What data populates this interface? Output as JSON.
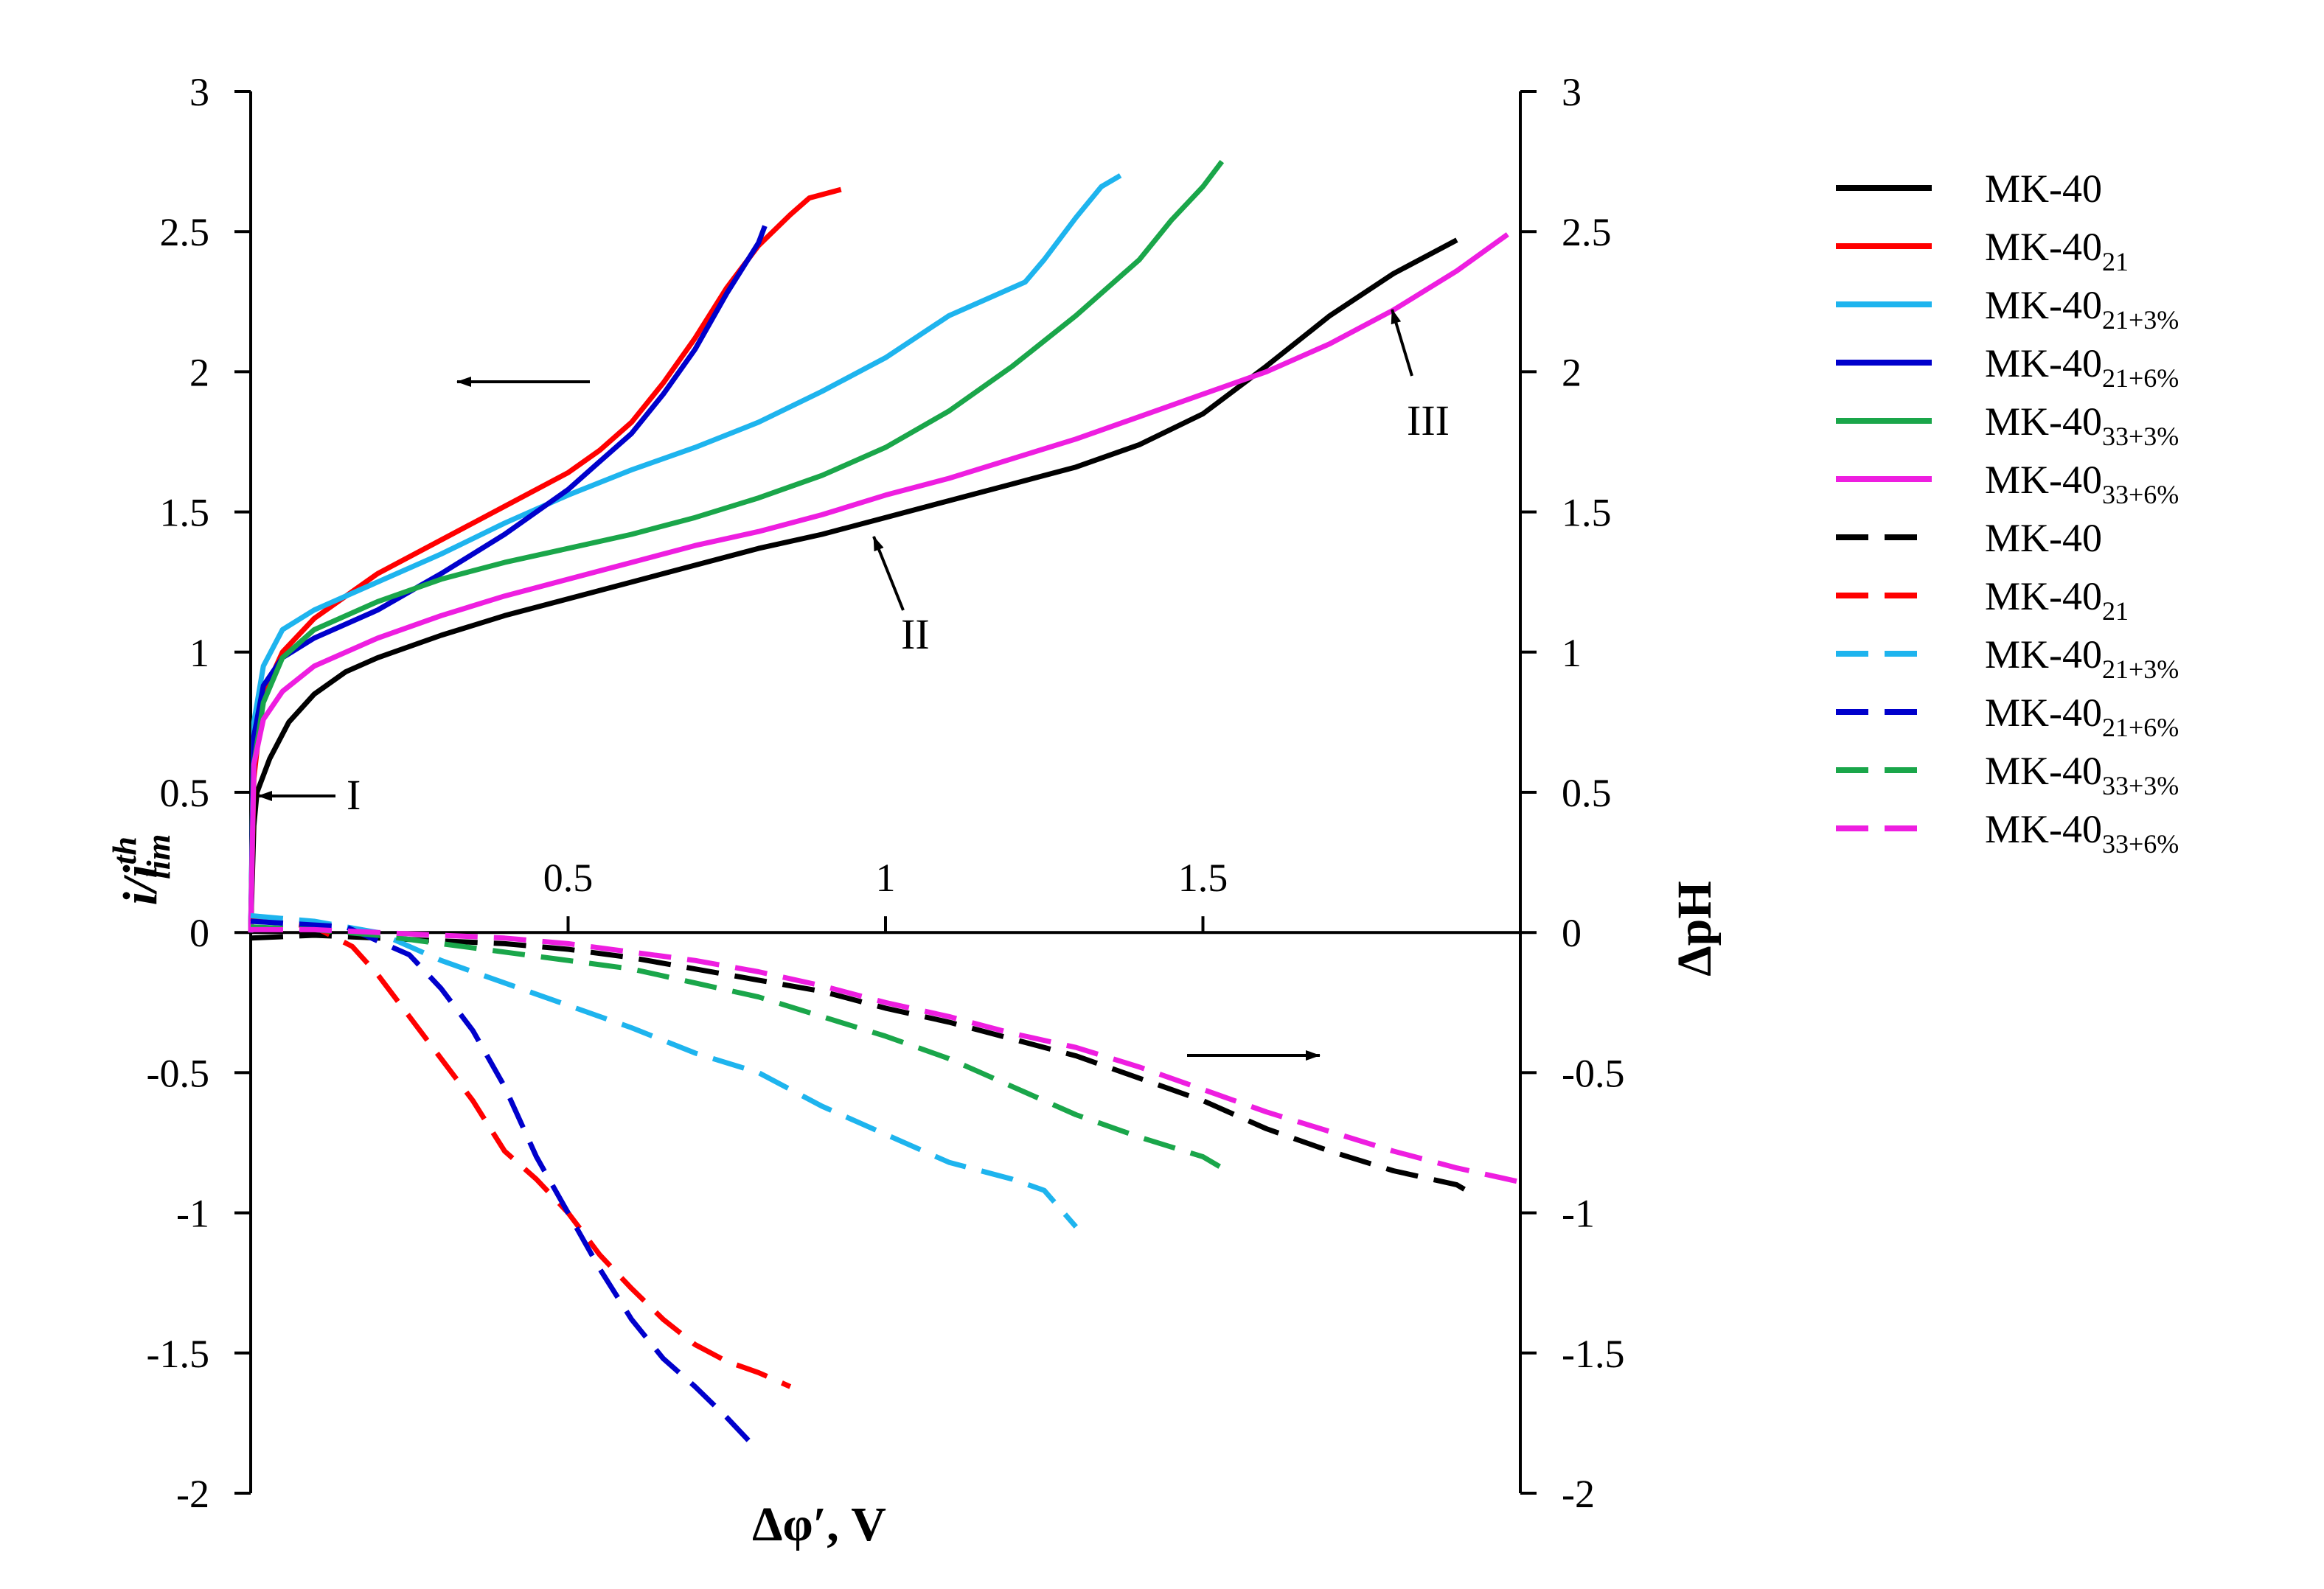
{
  "chart_data": {
    "type": "line",
    "xlabel": "Δφ′, V",
    "ylabel_left": "i/i_lim^th",
    "ylabel_right": "ΔpH",
    "xlim": [
      0,
      2.0
    ],
    "ylim": [
      -2,
      3
    ],
    "x_ticks": [
      "0.5",
      "1",
      "1.5"
    ],
    "y_ticks": [
      "3",
      "2.5",
      "2",
      "1.5",
      "1",
      "0.5",
      "0",
      "-0.5",
      "-1",
      "-1.5",
      "-2"
    ],
    "annotations": [
      "I",
      "II",
      "III"
    ],
    "series": [
      {
        "name": "MK-40",
        "sub": "",
        "color": "#000000",
        "dash": "solid",
        "axis": "left",
        "points": [
          [
            0,
            0
          ],
          [
            0.005,
            0.38
          ],
          [
            0.01,
            0.5
          ],
          [
            0.03,
            0.62
          ],
          [
            0.06,
            0.75
          ],
          [
            0.1,
            0.85
          ],
          [
            0.15,
            0.93
          ],
          [
            0.2,
            0.98
          ],
          [
            0.3,
            1.06
          ],
          [
            0.4,
            1.13
          ],
          [
            0.5,
            1.19
          ],
          [
            0.6,
            1.25
          ],
          [
            0.7,
            1.31
          ],
          [
            0.8,
            1.37
          ],
          [
            0.9,
            1.42
          ],
          [
            1.0,
            1.48
          ],
          [
            1.1,
            1.54
          ],
          [
            1.2,
            1.6
          ],
          [
            1.3,
            1.66
          ],
          [
            1.4,
            1.74
          ],
          [
            1.5,
            1.85
          ],
          [
            1.6,
            2.02
          ],
          [
            1.7,
            2.2
          ],
          [
            1.8,
            2.35
          ],
          [
            1.9,
            2.47
          ]
        ]
      },
      {
        "name": "MK-40",
        "sub": "21",
        "color": "#ff0000",
        "dash": "solid",
        "axis": "left",
        "points": [
          [
            0,
            0
          ],
          [
            0.005,
            0.55
          ],
          [
            0.02,
            0.85
          ],
          [
            0.05,
            1.0
          ],
          [
            0.1,
            1.12
          ],
          [
            0.2,
            1.28
          ],
          [
            0.3,
            1.4
          ],
          [
            0.4,
            1.52
          ],
          [
            0.5,
            1.64
          ],
          [
            0.55,
            1.72
          ],
          [
            0.6,
            1.82
          ],
          [
            0.65,
            1.96
          ],
          [
            0.7,
            2.12
          ],
          [
            0.75,
            2.3
          ],
          [
            0.8,
            2.45
          ],
          [
            0.85,
            2.56
          ],
          [
            0.88,
            2.62
          ],
          [
            0.93,
            2.65
          ]
        ]
      },
      {
        "name": "MK-40",
        "sub": "21+3%",
        "color": "#1eb4ee",
        "dash": "solid",
        "axis": "left",
        "points": [
          [
            0,
            0
          ],
          [
            0.005,
            0.75
          ],
          [
            0.02,
            0.95
          ],
          [
            0.05,
            1.08
          ],
          [
            0.1,
            1.15
          ],
          [
            0.2,
            1.25
          ],
          [
            0.3,
            1.35
          ],
          [
            0.4,
            1.46
          ],
          [
            0.5,
            1.56
          ],
          [
            0.6,
            1.65
          ],
          [
            0.7,
            1.73
          ],
          [
            0.8,
            1.82
          ],
          [
            0.9,
            1.93
          ],
          [
            1.0,
            2.05
          ],
          [
            1.1,
            2.2
          ],
          [
            1.15,
            2.25
          ],
          [
            1.22,
            2.32
          ],
          [
            1.25,
            2.4
          ],
          [
            1.3,
            2.55
          ],
          [
            1.34,
            2.66
          ],
          [
            1.37,
            2.7
          ]
        ]
      },
      {
        "name": "MK-40",
        "sub": "21+6%",
        "color": "#0000cc",
        "dash": "solid",
        "axis": "left",
        "points": [
          [
            0,
            0
          ],
          [
            0.005,
            0.7
          ],
          [
            0.02,
            0.88
          ],
          [
            0.05,
            0.98
          ],
          [
            0.1,
            1.05
          ],
          [
            0.2,
            1.15
          ],
          [
            0.3,
            1.28
          ],
          [
            0.4,
            1.42
          ],
          [
            0.5,
            1.58
          ],
          [
            0.55,
            1.68
          ],
          [
            0.6,
            1.78
          ],
          [
            0.65,
            1.92
          ],
          [
            0.7,
            2.08
          ],
          [
            0.75,
            2.28
          ],
          [
            0.8,
            2.46
          ],
          [
            0.81,
            2.52
          ]
        ]
      },
      {
        "name": "MK-40",
        "sub": "33+3%",
        "color": "#1aa64a",
        "dash": "solid",
        "axis": "left",
        "points": [
          [
            0,
            0
          ],
          [
            0.005,
            0.6
          ],
          [
            0.02,
            0.82
          ],
          [
            0.05,
            0.98
          ],
          [
            0.1,
            1.08
          ],
          [
            0.2,
            1.18
          ],
          [
            0.3,
            1.26
          ],
          [
            0.4,
            1.32
          ],
          [
            0.5,
            1.37
          ],
          [
            0.6,
            1.42
          ],
          [
            0.7,
            1.48
          ],
          [
            0.8,
            1.55
          ],
          [
            0.9,
            1.63
          ],
          [
            1.0,
            1.73
          ],
          [
            1.1,
            1.86
          ],
          [
            1.2,
            2.02
          ],
          [
            1.3,
            2.2
          ],
          [
            1.4,
            2.4
          ],
          [
            1.45,
            2.54
          ],
          [
            1.5,
            2.66
          ],
          [
            1.53,
            2.75
          ]
        ]
      },
      {
        "name": "MK-40",
        "sub": "33+6%",
        "color": "#ee1ee0",
        "dash": "solid",
        "axis": "left",
        "points": [
          [
            0,
            0
          ],
          [
            0.005,
            0.6
          ],
          [
            0.02,
            0.76
          ],
          [
            0.05,
            0.86
          ],
          [
            0.1,
            0.95
          ],
          [
            0.2,
            1.05
          ],
          [
            0.3,
            1.13
          ],
          [
            0.4,
            1.2
          ],
          [
            0.5,
            1.26
          ],
          [
            0.6,
            1.32
          ],
          [
            0.7,
            1.38
          ],
          [
            0.8,
            1.43
          ],
          [
            0.9,
            1.49
          ],
          [
            1.0,
            1.56
          ],
          [
            1.1,
            1.62
          ],
          [
            1.2,
            1.69
          ],
          [
            1.3,
            1.76
          ],
          [
            1.4,
            1.84
          ],
          [
            1.5,
            1.92
          ],
          [
            1.6,
            2.0
          ],
          [
            1.7,
            2.1
          ],
          [
            1.8,
            2.22
          ],
          [
            1.9,
            2.36
          ],
          [
            1.98,
            2.49
          ]
        ]
      },
      {
        "name": "MK-40",
        "sub": "",
        "color": "#000000",
        "dash": "dashed",
        "axis": "right",
        "points": [
          [
            0,
            -0.02
          ],
          [
            0.1,
            -0.01
          ],
          [
            0.2,
            -0.02
          ],
          [
            0.3,
            -0.03
          ],
          [
            0.4,
            -0.04
          ],
          [
            0.5,
            -0.06
          ],
          [
            0.6,
            -0.09
          ],
          [
            0.7,
            -0.13
          ],
          [
            0.8,
            -0.17
          ],
          [
            0.9,
            -0.21
          ],
          [
            1.0,
            -0.27
          ],
          [
            1.1,
            -0.32
          ],
          [
            1.2,
            -0.38
          ],
          [
            1.3,
            -0.44
          ],
          [
            1.4,
            -0.52
          ],
          [
            1.5,
            -0.6
          ],
          [
            1.6,
            -0.7
          ],
          [
            1.7,
            -0.78
          ],
          [
            1.8,
            -0.85
          ],
          [
            1.9,
            -0.9
          ],
          [
            1.93,
            -0.94
          ]
        ]
      },
      {
        "name": "MK-40",
        "sub": "21",
        "color": "#ff0000",
        "dash": "dashed",
        "axis": "right",
        "points": [
          [
            0,
            0.05
          ],
          [
            0.1,
            0.02
          ],
          [
            0.16,
            -0.05
          ],
          [
            0.2,
            -0.15
          ],
          [
            0.25,
            -0.3
          ],
          [
            0.3,
            -0.45
          ],
          [
            0.35,
            -0.6
          ],
          [
            0.4,
            -0.78
          ],
          [
            0.45,
            -0.88
          ],
          [
            0.5,
            -1.0
          ],
          [
            0.55,
            -1.15
          ],
          [
            0.6,
            -1.27
          ],
          [
            0.65,
            -1.38
          ],
          [
            0.7,
            -1.47
          ],
          [
            0.75,
            -1.53
          ],
          [
            0.8,
            -1.57
          ],
          [
            0.85,
            -1.62
          ]
        ]
      },
      {
        "name": "MK-40",
        "sub": "21+3%",
        "color": "#1eb4ee",
        "dash": "dashed",
        "axis": "right",
        "points": [
          [
            0,
            0.06
          ],
          [
            0.1,
            0.04
          ],
          [
            0.2,
            0.0
          ],
          [
            0.3,
            -0.1
          ],
          [
            0.4,
            -0.18
          ],
          [
            0.5,
            -0.26
          ],
          [
            0.6,
            -0.34
          ],
          [
            0.7,
            -0.43
          ],
          [
            0.8,
            -0.5
          ],
          [
            0.9,
            -0.62
          ],
          [
            1.0,
            -0.72
          ],
          [
            1.1,
            -0.82
          ],
          [
            1.2,
            -0.88
          ],
          [
            1.25,
            -0.92
          ],
          [
            1.3,
            -1.05
          ]
        ]
      },
      {
        "name": "MK-40",
        "sub": "21+6%",
        "color": "#0000cc",
        "dash": "dashed",
        "axis": "right",
        "points": [
          [
            0,
            0.04
          ],
          [
            0.15,
            0.02
          ],
          [
            0.25,
            -0.08
          ],
          [
            0.3,
            -0.2
          ],
          [
            0.35,
            -0.35
          ],
          [
            0.4,
            -0.55
          ],
          [
            0.45,
            -0.8
          ],
          [
            0.5,
            -1.0
          ],
          [
            0.55,
            -1.2
          ],
          [
            0.6,
            -1.38
          ],
          [
            0.65,
            -1.52
          ],
          [
            0.7,
            -1.62
          ],
          [
            0.75,
            -1.73
          ],
          [
            0.8,
            -1.85
          ]
        ]
      },
      {
        "name": "MK-40",
        "sub": "33+3%",
        "color": "#1aa64a",
        "dash": "dashed",
        "axis": "right",
        "points": [
          [
            0,
            0.02
          ],
          [
            0.1,
            0.01
          ],
          [
            0.2,
            -0.01
          ],
          [
            0.3,
            -0.04
          ],
          [
            0.4,
            -0.07
          ],
          [
            0.5,
            -0.1
          ],
          [
            0.6,
            -0.13
          ],
          [
            0.7,
            -0.18
          ],
          [
            0.8,
            -0.23
          ],
          [
            0.9,
            -0.3
          ],
          [
            1.0,
            -0.37
          ],
          [
            1.1,
            -0.45
          ],
          [
            1.2,
            -0.55
          ],
          [
            1.3,
            -0.65
          ],
          [
            1.4,
            -0.73
          ],
          [
            1.5,
            -0.8
          ],
          [
            1.53,
            -0.84
          ]
        ]
      },
      {
        "name": "MK-40",
        "sub": "33+6%",
        "color": "#ee1ee0",
        "dash": "dashed",
        "axis": "right",
        "points": [
          [
            0,
            0.01
          ],
          [
            0.1,
            0.01
          ],
          [
            0.2,
            0.0
          ],
          [
            0.3,
            -0.01
          ],
          [
            0.4,
            -0.02
          ],
          [
            0.5,
            -0.04
          ],
          [
            0.6,
            -0.07
          ],
          [
            0.7,
            -0.1
          ],
          [
            0.8,
            -0.14
          ],
          [
            0.9,
            -0.19
          ],
          [
            1.0,
            -0.25
          ],
          [
            1.1,
            -0.3
          ],
          [
            1.2,
            -0.36
          ],
          [
            1.3,
            -0.41
          ],
          [
            1.4,
            -0.48
          ],
          [
            1.5,
            -0.56
          ],
          [
            1.6,
            -0.64
          ],
          [
            1.7,
            -0.71
          ],
          [
            1.8,
            -0.78
          ],
          [
            1.9,
            -0.84
          ],
          [
            2.0,
            -0.89
          ]
        ]
      }
    ]
  }
}
